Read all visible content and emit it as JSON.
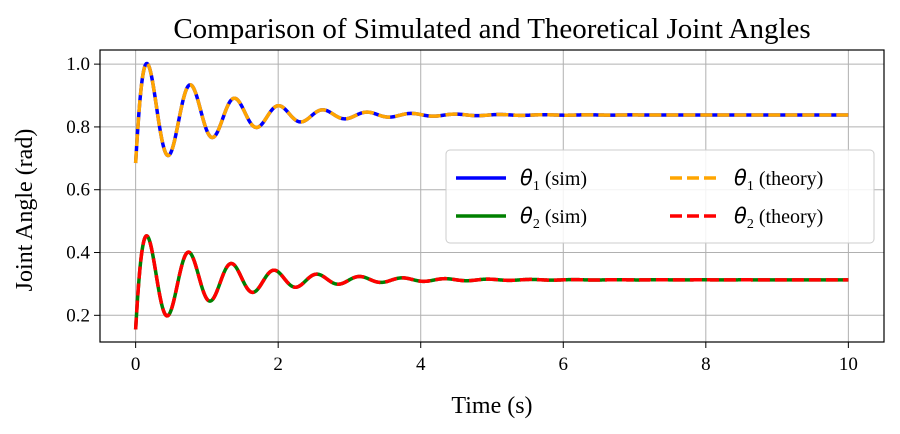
{
  "chart_data": {
    "type": "line",
    "title": "Comparison of Simulated and Theoretical Joint Angles",
    "xlabel": "Time (s)",
    "ylabel": "Joint Angle (rad)",
    "xlim": [
      -0.5,
      10.5
    ],
    "ylim": [
      0.115,
      1.045
    ],
    "xticks": [
      0,
      2,
      4,
      6,
      8,
      10
    ],
    "xtick_labels": [
      "0",
      "2",
      "4",
      "6",
      "8",
      "10"
    ],
    "yticks": [
      0.2,
      0.4,
      0.6,
      0.8,
      1.0
    ],
    "ytick_labels": [
      "0.2",
      "0.4",
      "0.6",
      "0.8",
      "1.0"
    ],
    "grid": true,
    "legend_position": "center-right",
    "legend_columns": 2,
    "series": [
      {
        "name_symbol": "θ",
        "name_sub": "1",
        "name_suffix": " (sim)",
        "color": "#0000ff",
        "style": "solid",
        "model": {
          "final": 0.838,
          "initial": 0.685,
          "amplitude": 0.2,
          "decay": 0.95,
          "period": 0.62,
          "phase": 1.0
        }
      },
      {
        "name_symbol": "θ",
        "name_sub": "2",
        "name_suffix": " (sim)",
        "color": "#008000",
        "style": "solid",
        "model": {
          "final": 0.313,
          "initial": 0.155,
          "amplitude": 0.17,
          "decay": 0.88,
          "period": 0.6,
          "phase": 1.0
        }
      },
      {
        "name_symbol": "θ",
        "name_sub": "1",
        "name_suffix": " (theory)",
        "color": "#ffa500",
        "style": "dashed",
        "model": {
          "final": 0.838,
          "initial": 0.685,
          "amplitude": 0.2,
          "decay": 0.95,
          "period": 0.62,
          "phase": 1.0
        }
      },
      {
        "name_symbol": "θ",
        "name_sub": "2",
        "name_suffix": " (theory)",
        "color": "#ff0000",
        "style": "dashed",
        "model": {
          "final": 0.313,
          "initial": 0.155,
          "amplitude": 0.17,
          "decay": 0.88,
          "period": 0.6,
          "phase": 1.0
        }
      }
    ]
  }
}
